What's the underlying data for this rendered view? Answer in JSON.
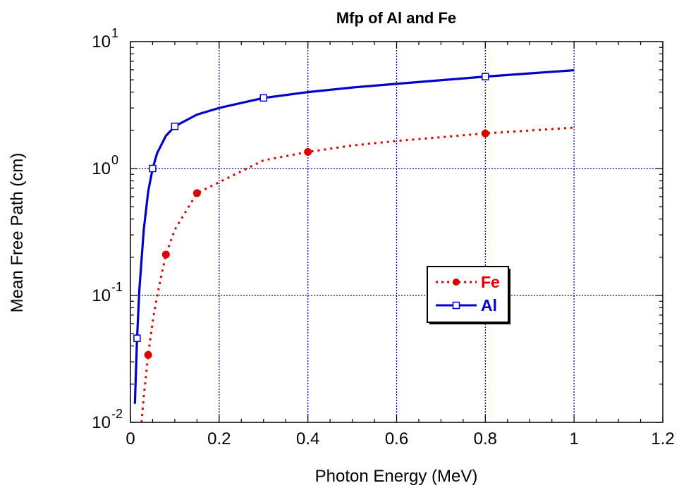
{
  "chart_data": {
    "type": "line",
    "title": "Mfp of Al and Fe",
    "xlabel": "Photon Energy (MeV)",
    "ylabel": "Mean Free Path (cm)",
    "xlim": [
      0,
      1.2
    ],
    "ylim": [
      0.01,
      10
    ],
    "x_scale": "linear",
    "y_scale": "log",
    "grid": true,
    "legend_placement": "center-right",
    "x_ticks": [
      {
        "value": 0,
        "label": "0"
      },
      {
        "value": 0.2,
        "label": "0.2"
      },
      {
        "value": 0.4,
        "label": "0.4"
      },
      {
        "value": 0.6,
        "label": "0.6"
      },
      {
        "value": 0.8,
        "label": "0.8"
      },
      {
        "value": 1,
        "label": "1"
      },
      {
        "value": 1.2,
        "label": "1.2"
      }
    ],
    "y_ticks": [
      {
        "value": 0.01,
        "base": "10",
        "exp": "-2"
      },
      {
        "value": 0.1,
        "base": "10",
        "exp": "-1"
      },
      {
        "value": 1,
        "base": "10",
        "exp": "0"
      },
      {
        "value": 10,
        "base": "10",
        "exp": "1"
      }
    ],
    "series": [
      {
        "name": "Fe",
        "color": "#dd0000",
        "line_style": "dotted",
        "marker": "filled-circle",
        "line": {
          "x": [
            0.025,
            0.03,
            0.04,
            0.05,
            0.06,
            0.08,
            0.1,
            0.15,
            0.2,
            0.3,
            0.4,
            0.5,
            0.6,
            0.8,
            1.0
          ],
          "y": [
            0.01,
            0.016,
            0.034,
            0.062,
            0.099,
            0.21,
            0.33,
            0.64,
            0.78,
            1.16,
            1.35,
            1.52,
            1.65,
            1.89,
            2.1
          ]
        },
        "markers": {
          "x": [
            0.04,
            0.08,
            0.15,
            0.4,
            0.8
          ],
          "y": [
            0.034,
            0.21,
            0.64,
            1.35,
            1.89
          ]
        }
      },
      {
        "name": "Al",
        "color": "#0000cc",
        "line_style": "solid",
        "marker": "open-square",
        "line": {
          "x": [
            0.01,
            0.015,
            0.02,
            0.03,
            0.04,
            0.05,
            0.06,
            0.08,
            0.1,
            0.15,
            0.2,
            0.3,
            0.4,
            0.5,
            0.6,
            0.8,
            1.0
          ],
          "y": [
            0.014,
            0.046,
            0.11,
            0.33,
            0.66,
            1.0,
            1.32,
            1.81,
            2.15,
            2.66,
            3.0,
            3.6,
            4.0,
            4.35,
            4.65,
            5.3,
            5.95
          ]
        },
        "markers": {
          "x": [
            0.015,
            0.05,
            0.1,
            0.3,
            0.8
          ],
          "y": [
            0.046,
            1.0,
            2.15,
            3.6,
            5.3
          ]
        }
      }
    ]
  }
}
